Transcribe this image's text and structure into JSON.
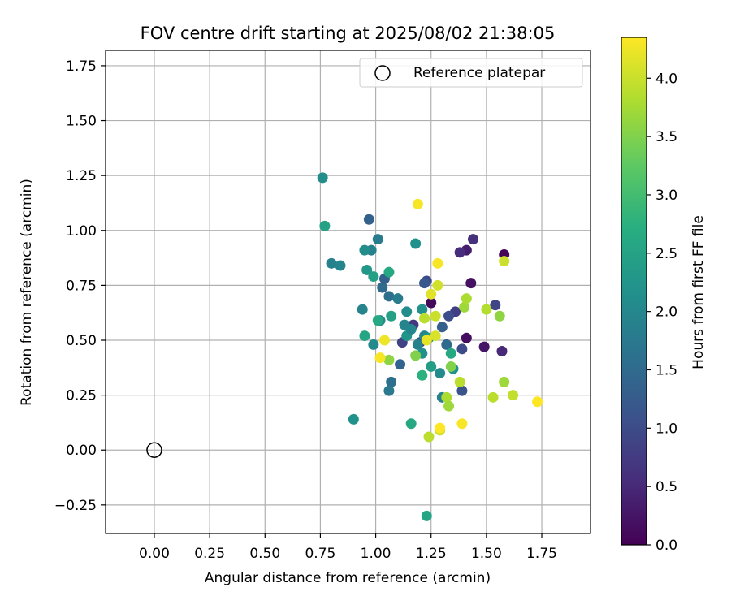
{
  "chart_data": {
    "type": "scatter",
    "title": "FOV centre drift starting at 2025/08/02 21:38:05",
    "xlabel": "Angular distance from reference (arcmin)",
    "ylabel": "Rotation from reference (arcmin)",
    "xlim": [
      -0.22,
      1.97
    ],
    "ylim": [
      -0.38,
      1.82
    ],
    "xticks": [
      "0.00",
      "0.25",
      "0.50",
      "0.75",
      "1.00",
      "1.25",
      "1.50",
      "1.75"
    ],
    "yticks": [
      "−0.25",
      "0.00",
      "0.25",
      "0.50",
      "0.75",
      "1.00",
      "1.25",
      "1.50",
      "1.75"
    ],
    "grid": true,
    "legend": {
      "placement": "upper right",
      "entries": [
        "Reference platepar"
      ]
    },
    "reference_point": {
      "x": 0.0,
      "y": 0.0
    },
    "colorbar": {
      "label": "Hours from first FF file",
      "range": [
        0.0,
        4.35
      ],
      "ticks": [
        "0.0",
        "0.5",
        "1.0",
        "1.5",
        "2.0",
        "2.5",
        "3.0",
        "3.5",
        "4.0"
      ],
      "colormap": "viridis"
    },
    "points": [
      {
        "x": 1.58,
        "y": 0.89,
        "c": 0.05
      },
      {
        "x": 1.41,
        "y": 0.91,
        "c": 0.35
      },
      {
        "x": 1.44,
        "y": 0.96,
        "c": 0.6
      },
      {
        "x": 1.38,
        "y": 0.9,
        "c": 0.55
      },
      {
        "x": 1.43,
        "y": 0.76,
        "c": 0.2
      },
      {
        "x": 1.25,
        "y": 0.67,
        "c": 0.1
      },
      {
        "x": 1.36,
        "y": 0.63,
        "c": 0.8
      },
      {
        "x": 1.41,
        "y": 0.51,
        "c": 0.15
      },
      {
        "x": 1.49,
        "y": 0.47,
        "c": 0.25
      },
      {
        "x": 1.57,
        "y": 0.45,
        "c": 0.5
      },
      {
        "x": 1.54,
        "y": 0.66,
        "c": 0.9
      },
      {
        "x": 1.39,
        "y": 0.46,
        "c": 1.0
      },
      {
        "x": 1.39,
        "y": 0.27,
        "c": 1.1
      },
      {
        "x": 1.33,
        "y": 0.61,
        "c": 1.05
      },
      {
        "x": 1.3,
        "y": 0.56,
        "c": 1.3
      },
      {
        "x": 1.32,
        "y": 0.48,
        "c": 1.5
      },
      {
        "x": 1.23,
        "y": 0.77,
        "c": 0.95
      },
      {
        "x": 1.22,
        "y": 0.76,
        "c": 1.2
      },
      {
        "x": 1.2,
        "y": 0.49,
        "c": 0.85
      },
      {
        "x": 1.17,
        "y": 0.57,
        "c": 0.7
      },
      {
        "x": 1.12,
        "y": 0.49,
        "c": 0.85
      },
      {
        "x": 1.11,
        "y": 0.39,
        "c": 1.4
      },
      {
        "x": 1.07,
        "y": 0.31,
        "c": 1.6
      },
      {
        "x": 1.06,
        "y": 0.27,
        "c": 1.75
      },
      {
        "x": 1.06,
        "y": 0.7,
        "c": 1.6
      },
      {
        "x": 1.1,
        "y": 0.69,
        "c": 1.8
      },
      {
        "x": 1.03,
        "y": 0.74,
        "c": 1.5
      },
      {
        "x": 1.04,
        "y": 0.78,
        "c": 1.35
      },
      {
        "x": 0.97,
        "y": 1.05,
        "c": 1.35
      },
      {
        "x": 1.01,
        "y": 0.96,
        "c": 1.8
      },
      {
        "x": 0.98,
        "y": 0.91,
        "c": 1.9
      },
      {
        "x": 0.95,
        "y": 0.91,
        "c": 2.1
      },
      {
        "x": 0.8,
        "y": 0.85,
        "c": 1.9
      },
      {
        "x": 0.84,
        "y": 0.84,
        "c": 1.95
      },
      {
        "x": 0.76,
        "y": 1.24,
        "c": 2.1
      },
      {
        "x": 0.77,
        "y": 1.02,
        "c": 2.5
      },
      {
        "x": 1.18,
        "y": 0.94,
        "c": 2.2
      },
      {
        "x": 0.96,
        "y": 0.82,
        "c": 2.3
      },
      {
        "x": 0.99,
        "y": 0.79,
        "c": 2.45
      },
      {
        "x": 1.06,
        "y": 0.81,
        "c": 2.6
      },
      {
        "x": 0.94,
        "y": 0.64,
        "c": 1.95
      },
      {
        "x": 1.02,
        "y": 0.59,
        "c": 2.0
      },
      {
        "x": 1.01,
        "y": 0.59,
        "c": 2.6
      },
      {
        "x": 1.07,
        "y": 0.61,
        "c": 2.45
      },
      {
        "x": 1.14,
        "y": 0.63,
        "c": 2.1
      },
      {
        "x": 1.13,
        "y": 0.57,
        "c": 1.95
      },
      {
        "x": 1.14,
        "y": 0.52,
        "c": 2.25
      },
      {
        "x": 1.16,
        "y": 0.55,
        "c": 2.0
      },
      {
        "x": 0.95,
        "y": 0.52,
        "c": 2.55
      },
      {
        "x": 0.99,
        "y": 0.48,
        "c": 2.05
      },
      {
        "x": 1.21,
        "y": 0.64,
        "c": 2.15
      },
      {
        "x": 1.22,
        "y": 0.52,
        "c": 2.0
      },
      {
        "x": 1.24,
        "y": 0.51,
        "c": 2.3
      },
      {
        "x": 1.21,
        "y": 0.44,
        "c": 2.2
      },
      {
        "x": 1.19,
        "y": 0.48,
        "c": 1.9
      },
      {
        "x": 1.25,
        "y": 0.38,
        "c": 2.4
      },
      {
        "x": 1.29,
        "y": 0.35,
        "c": 2.05
      },
      {
        "x": 1.3,
        "y": 0.24,
        "c": 1.9
      },
      {
        "x": 1.34,
        "y": 0.44,
        "c": 2.6
      },
      {
        "x": 1.35,
        "y": 0.37,
        "c": 2.2
      },
      {
        "x": 1.21,
        "y": 0.34,
        "c": 2.75
      },
      {
        "x": 1.16,
        "y": 0.12,
        "c": 2.6
      },
      {
        "x": 0.9,
        "y": 0.14,
        "c": 2.2
      },
      {
        "x": 1.23,
        "y": -0.3,
        "c": 2.55
      },
      {
        "x": 1.18,
        "y": 0.43,
        "c": 3.5
      },
      {
        "x": 1.06,
        "y": 0.41,
        "c": 3.6
      },
      {
        "x": 1.34,
        "y": 0.38,
        "c": 3.5
      },
      {
        "x": 1.32,
        "y": 0.24,
        "c": 3.8
      },
      {
        "x": 1.33,
        "y": 0.2,
        "c": 3.7
      },
      {
        "x": 1.24,
        "y": 0.06,
        "c": 3.9
      },
      {
        "x": 1.29,
        "y": 0.09,
        "c": 4.0
      },
      {
        "x": 1.38,
        "y": 0.31,
        "c": 3.9
      },
      {
        "x": 1.4,
        "y": 0.65,
        "c": 3.7
      },
      {
        "x": 1.41,
        "y": 0.69,
        "c": 3.8
      },
      {
        "x": 1.5,
        "y": 0.64,
        "c": 3.85
      },
      {
        "x": 1.56,
        "y": 0.61,
        "c": 3.6
      },
      {
        "x": 1.58,
        "y": 0.31,
        "c": 3.7
      },
      {
        "x": 1.53,
        "y": 0.24,
        "c": 3.9
      },
      {
        "x": 1.62,
        "y": 0.25,
        "c": 3.95
      },
      {
        "x": 1.58,
        "y": 0.86,
        "c": 4.0
      },
      {
        "x": 1.27,
        "y": 0.61,
        "c": 4.0
      },
      {
        "x": 1.22,
        "y": 0.6,
        "c": 3.9
      },
      {
        "x": 1.28,
        "y": 0.75,
        "c": 4.05
      },
      {
        "x": 1.25,
        "y": 0.71,
        "c": 4.15
      },
      {
        "x": 1.27,
        "y": 0.52,
        "c": 4.1
      },
      {
        "x": 1.23,
        "y": 0.5,
        "c": 4.2
      },
      {
        "x": 1.04,
        "y": 0.5,
        "c": 4.25
      },
      {
        "x": 1.02,
        "y": 0.42,
        "c": 4.3
      },
      {
        "x": 1.28,
        "y": 0.85,
        "c": 4.3
      },
      {
        "x": 1.19,
        "y": 1.12,
        "c": 4.3
      },
      {
        "x": 1.39,
        "y": 0.12,
        "c": 4.3
      },
      {
        "x": 1.29,
        "y": 0.1,
        "c": 4.35
      },
      {
        "x": 1.73,
        "y": 0.22,
        "c": 4.35
      }
    ]
  }
}
